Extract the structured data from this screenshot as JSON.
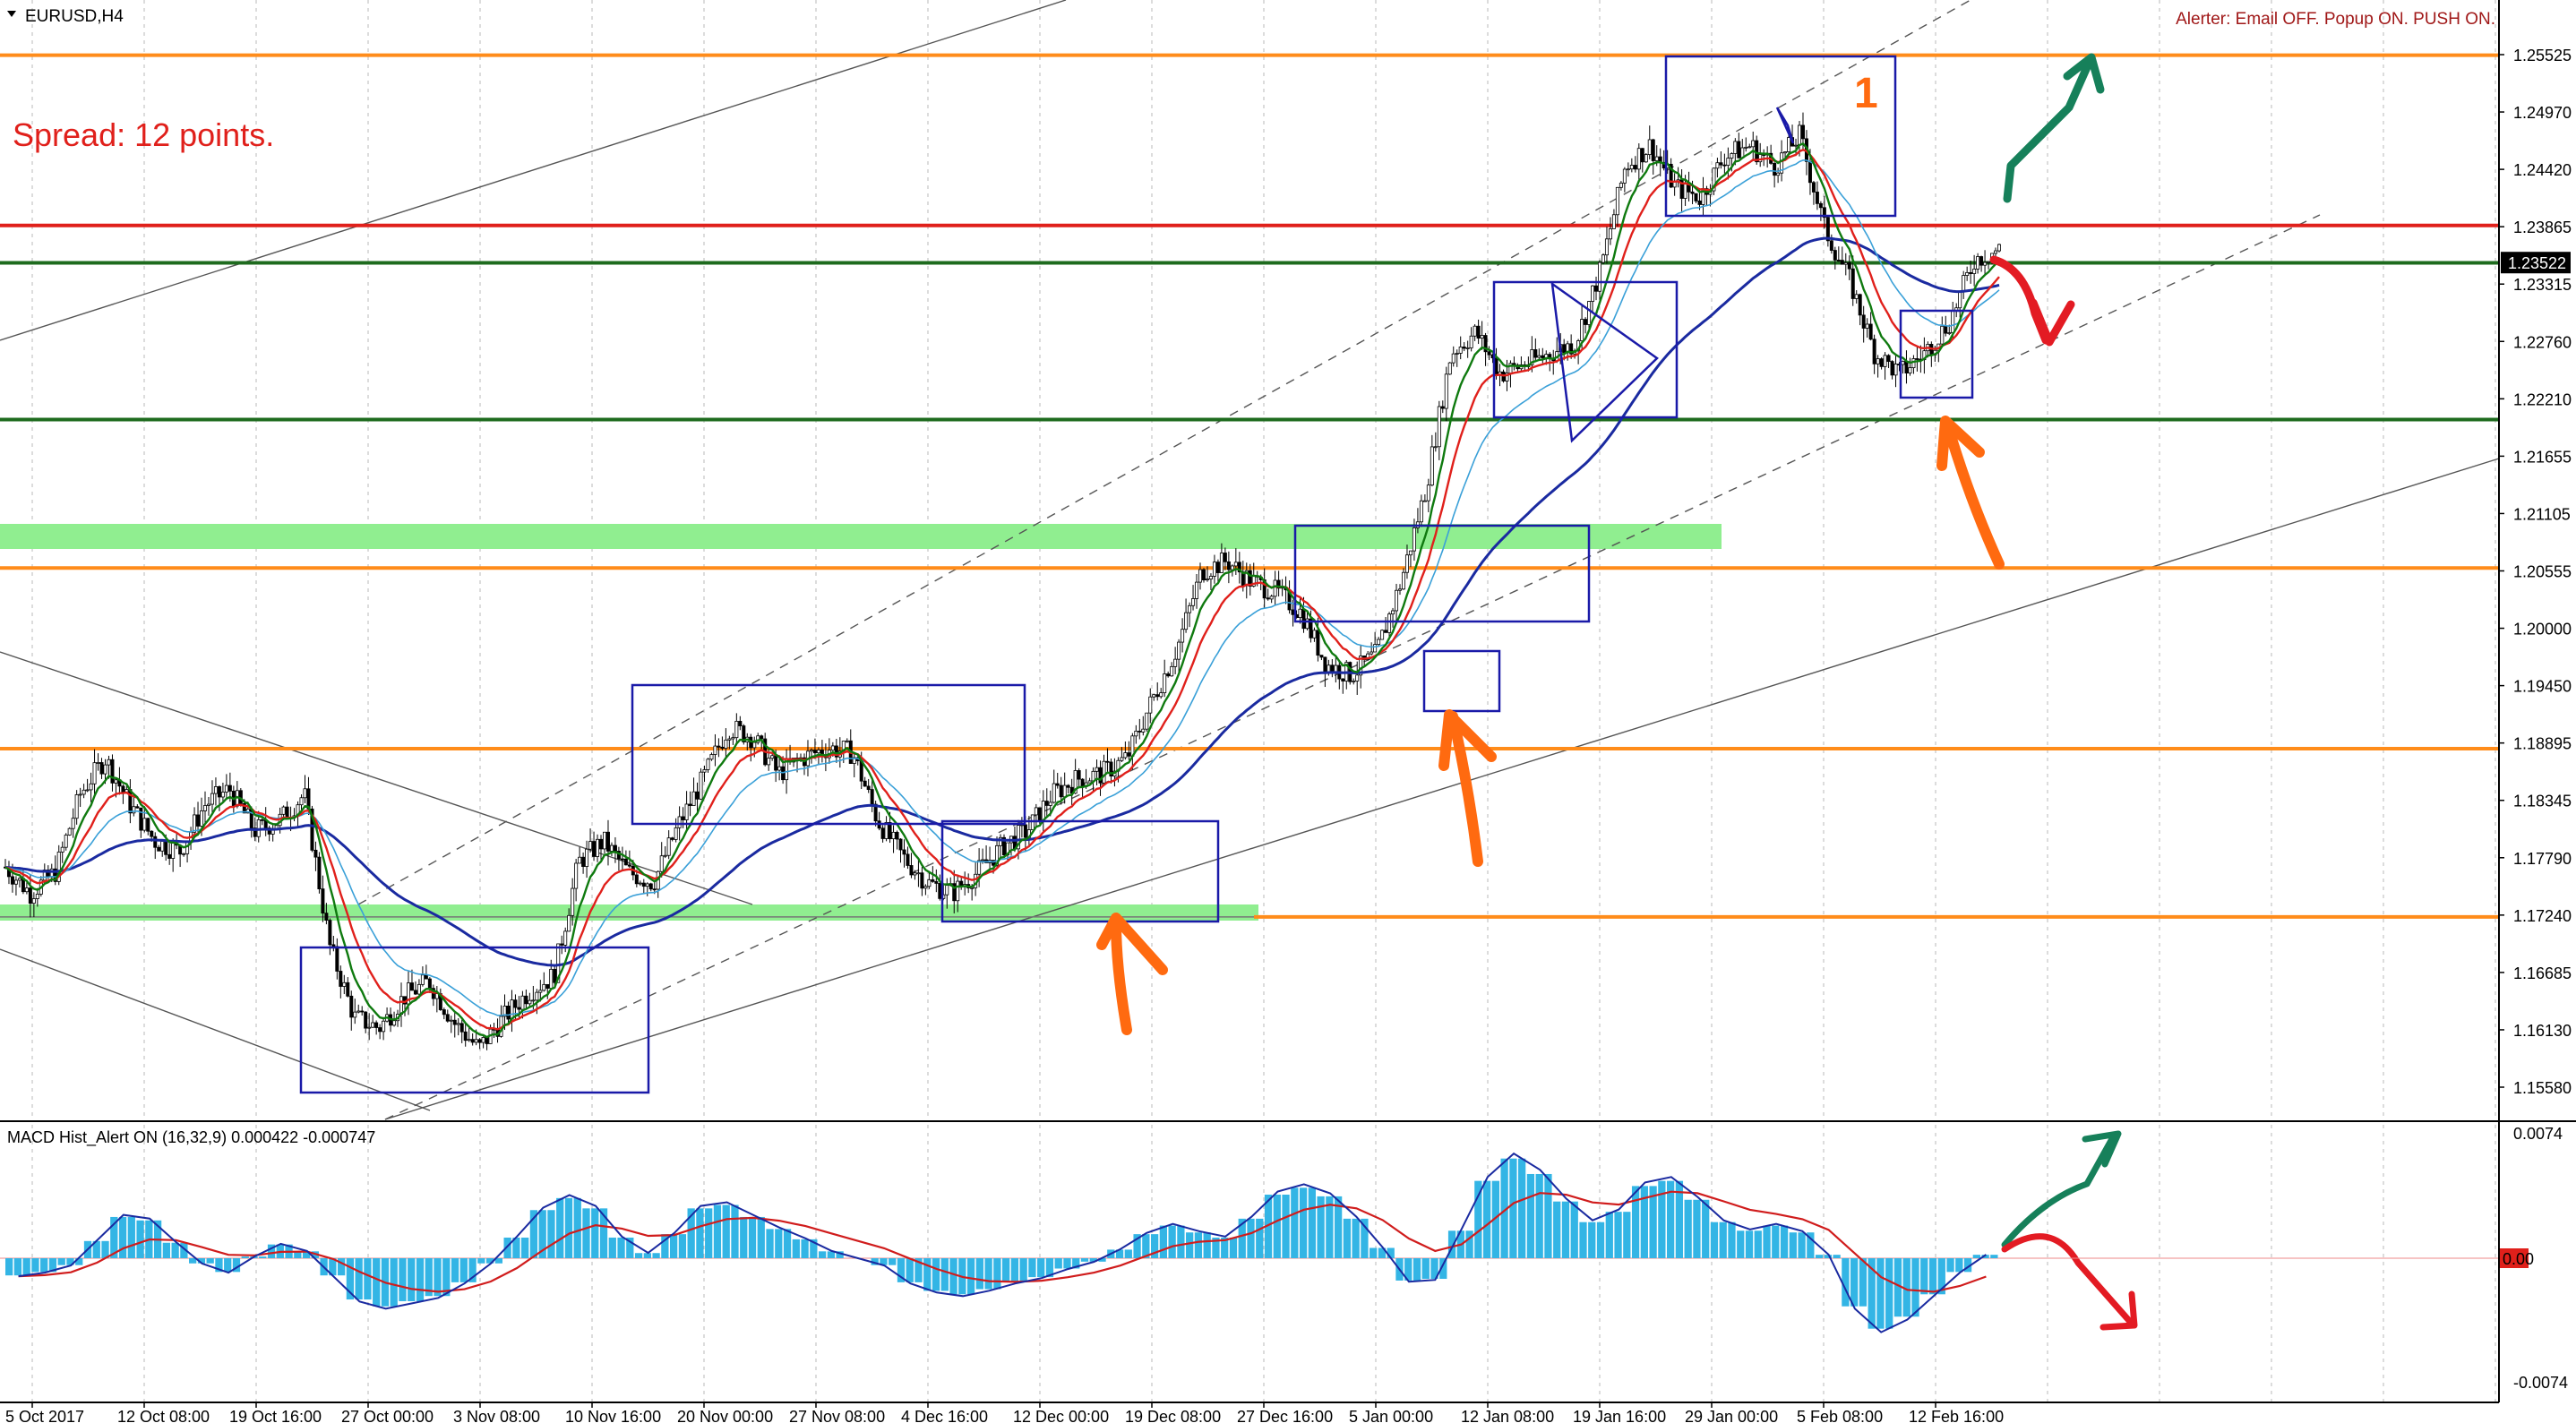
{
  "header": {
    "symbol_label": "EURUSD,H4",
    "alerter_status": "Alerter:  Email OFF.  Popup ON.  PUSH ON.",
    "spread_text": "Spread: 12 points."
  },
  "annotations": {
    "box_number": "1"
  },
  "macd": {
    "label": "MACD Hist_Alert ON (16,32,9)  0.000422 -0.000747",
    "axis_ticks": [
      "0.0074",
      "0.00",
      "-0.0074"
    ]
  },
  "colors": {
    "support_resistance_orange": "#ff8c1a",
    "resistance_red": "#e0201b",
    "support_green": "#1e6b1e",
    "zone_green": "#90ee90",
    "pattern_box": "#1a1aa8",
    "ma_slow": "#1a2aa0",
    "ma_red": "#e0201b",
    "ma_green": "#0f7a0f",
    "ma_light": "#3aa0d8",
    "arrow_orange": "#ff6a10",
    "arrow_green": "#16805a",
    "arrow_red": "#e31b23",
    "histogram": "#33b5e5"
  },
  "chart_data": [
    {
      "type": "candlestick",
      "symbol": "EURUSD",
      "timeframe": "H4",
      "y_axis_ticks": [
        "1.25525",
        "1.24970",
        "1.24420",
        "1.23865",
        "1.23315",
        "1.22760",
        "1.22210",
        "1.21655",
        "1.21105",
        "1.20555",
        "1.20000",
        "1.19450",
        "1.18895",
        "1.18345",
        "1.17790",
        "1.17240",
        "1.16685",
        "1.16130",
        "1.15580"
      ],
      "current_price": "1.23522",
      "ylim": [
        1.1525,
        1.2595
      ],
      "x_axis_ticks": [
        "5 Oct 2017",
        "12 Oct 08:00",
        "19 Oct 16:00",
        "27 Oct 00:00",
        "3 Nov 08:00",
        "10 Nov 16:00",
        "20 Nov 00:00",
        "27 Nov 08:00",
        "4 Dec 16:00",
        "12 Dec 00:00",
        "19 Dec 08:00",
        "27 Dec 16:00",
        "5 Jan 00:00",
        "12 Jan 08:00",
        "19 Jan 16:00",
        "29 Jan 00:00",
        "5 Feb 08:00",
        "12 Feb 16:00"
      ],
      "horizontal_levels": [
        {
          "price": 1.2552,
          "color": "orange"
        },
        {
          "price": 1.2388,
          "color": "red"
        },
        {
          "price": 1.2352,
          "color": "green"
        },
        {
          "price": 1.2201,
          "color": "green"
        },
        {
          "price": 1.2058,
          "color": "orange"
        },
        {
          "price": 1.1884,
          "color": "orange"
        },
        {
          "price": 1.1722,
          "color": "orange"
        }
      ],
      "price_path": [
        [
          0,
          1.177
        ],
        [
          0.5,
          1.1745
        ],
        [
          1,
          1.1765
        ],
        [
          1.5,
          1.184
        ],
        [
          2,
          1.1875
        ],
        [
          2.5,
          1.183
        ],
        [
          3,
          1.1795
        ],
        [
          3.5,
          1.1785
        ],
        [
          4,
          1.183
        ],
        [
          4.5,
          1.1845
        ],
        [
          5,
          1.1805
        ],
        [
          5.5,
          1.1815
        ],
        [
          6,
          1.184
        ],
        [
          6.5,
          1.1695
        ],
        [
          7,
          1.1625
        ],
        [
          7.5,
          1.1615
        ],
        [
          8,
          1.1645
        ],
        [
          8.5,
          1.166
        ],
        [
          9,
          1.162
        ],
        [
          9.5,
          1.1595
        ],
        [
          10,
          1.1625
        ],
        [
          10.5,
          1.165
        ],
        [
          11,
          1.1665
        ],
        [
          11.5,
          1.1775
        ],
        [
          12,
          1.1795
        ],
        [
          12.5,
          1.1765
        ],
        [
          13,
          1.1755
        ],
        [
          13.5,
          1.181
        ],
        [
          14,
          1.1855
        ],
        [
          14.5,
          1.1905
        ],
        [
          15,
          1.1895
        ],
        [
          15.5,
          1.186
        ],
        [
          16,
          1.1875
        ],
        [
          16.5,
          1.1885
        ],
        [
          17,
          1.188
        ],
        [
          17.5,
          1.1815
        ],
        [
          18,
          1.178
        ],
        [
          18.5,
          1.1755
        ],
        [
          19,
          1.1745
        ],
        [
          19.5,
          1.1765
        ],
        [
          20,
          1.179
        ],
        [
          20.5,
          1.1805
        ],
        [
          21,
          1.184
        ],
        [
          21.5,
          1.1855
        ],
        [
          22,
          1.186
        ],
        [
          22.5,
          1.1875
        ],
        [
          23,
          1.193
        ],
        [
          23.5,
          1.198
        ],
        [
          24,
          1.2055
        ],
        [
          24.5,
          1.2065
        ],
        [
          25,
          1.2045
        ],
        [
          25.5,
          1.2035
        ],
        [
          26,
          1.2015
        ],
        [
          26.5,
          1.1965
        ],
        [
          27,
          1.1955
        ],
        [
          27.5,
          1.1975
        ],
        [
          28,
          1.2045
        ],
        [
          28.5,
          1.2135
        ],
        [
          29,
          1.2265
        ],
        [
          29.5,
          1.2285
        ],
        [
          30,
          1.2245
        ],
        [
          30.5,
          1.2255
        ],
        [
          31,
          1.2265
        ],
        [
          31.5,
          1.2275
        ],
        [
          32,
          1.2345
        ],
        [
          32.5,
          1.2445
        ],
        [
          33,
          1.2465
        ],
        [
          33.5,
          1.2425
        ],
        [
          34,
          1.2415
        ],
        [
          34.5,
          1.2455
        ],
        [
          35,
          1.2465
        ],
        [
          35.5,
          1.2445
        ],
        [
          36,
          1.2475
        ],
        [
          36.5,
          1.2385
        ],
        [
          37,
          1.2335
        ],
        [
          37.5,
          1.2265
        ],
        [
          38,
          1.2245
        ],
        [
          38.5,
          1.2265
        ],
        [
          39,
          1.2295
        ],
        [
          39.5,
          1.2355
        ],
        [
          40,
          1.2365
        ]
      ]
    },
    {
      "type": "histogram",
      "name": "MACD Hist_Alert ON (16,32,9)",
      "values_text": "0.000422 -0.000747",
      "ylim": [
        -0.0074,
        0.0074
      ],
      "values": [
        -0.001,
        -0.0008,
        -0.0004,
        0.001,
        0.0024,
        0.0022,
        0.0009,
        -0.0003,
        -0.0008,
        0.0001,
        0.0008,
        0.0004,
        -0.001,
        -0.0024,
        -0.0028,
        -0.0025,
        -0.0022,
        -0.0014,
        -0.0003,
        0.0012,
        0.0028,
        0.0035,
        0.0029,
        0.0012,
        0.0003,
        0.0014,
        0.0029,
        0.0031,
        0.0024,
        0.0017,
        0.0011,
        0.0004,
        0.0,
        -0.0004,
        -0.0014,
        -0.0019,
        -0.0021,
        -0.0018,
        -0.0014,
        -0.0011,
        -0.0006,
        -0.0002,
        0.0005,
        0.0014,
        0.0019,
        0.0015,
        0.0012,
        0.0023,
        0.0037,
        0.0041,
        0.0036,
        0.0023,
        0.0006,
        -0.0013,
        -0.0012,
        0.0016,
        0.0045,
        0.0058,
        0.0049,
        0.0033,
        0.0021,
        0.0027,
        0.0042,
        0.0045,
        0.0034,
        0.0021,
        0.0016,
        0.0019,
        0.0015,
        0.0002,
        -0.0028,
        -0.0041,
        -0.0034,
        -0.0021,
        -0.0008,
        0.0002
      ]
    }
  ]
}
